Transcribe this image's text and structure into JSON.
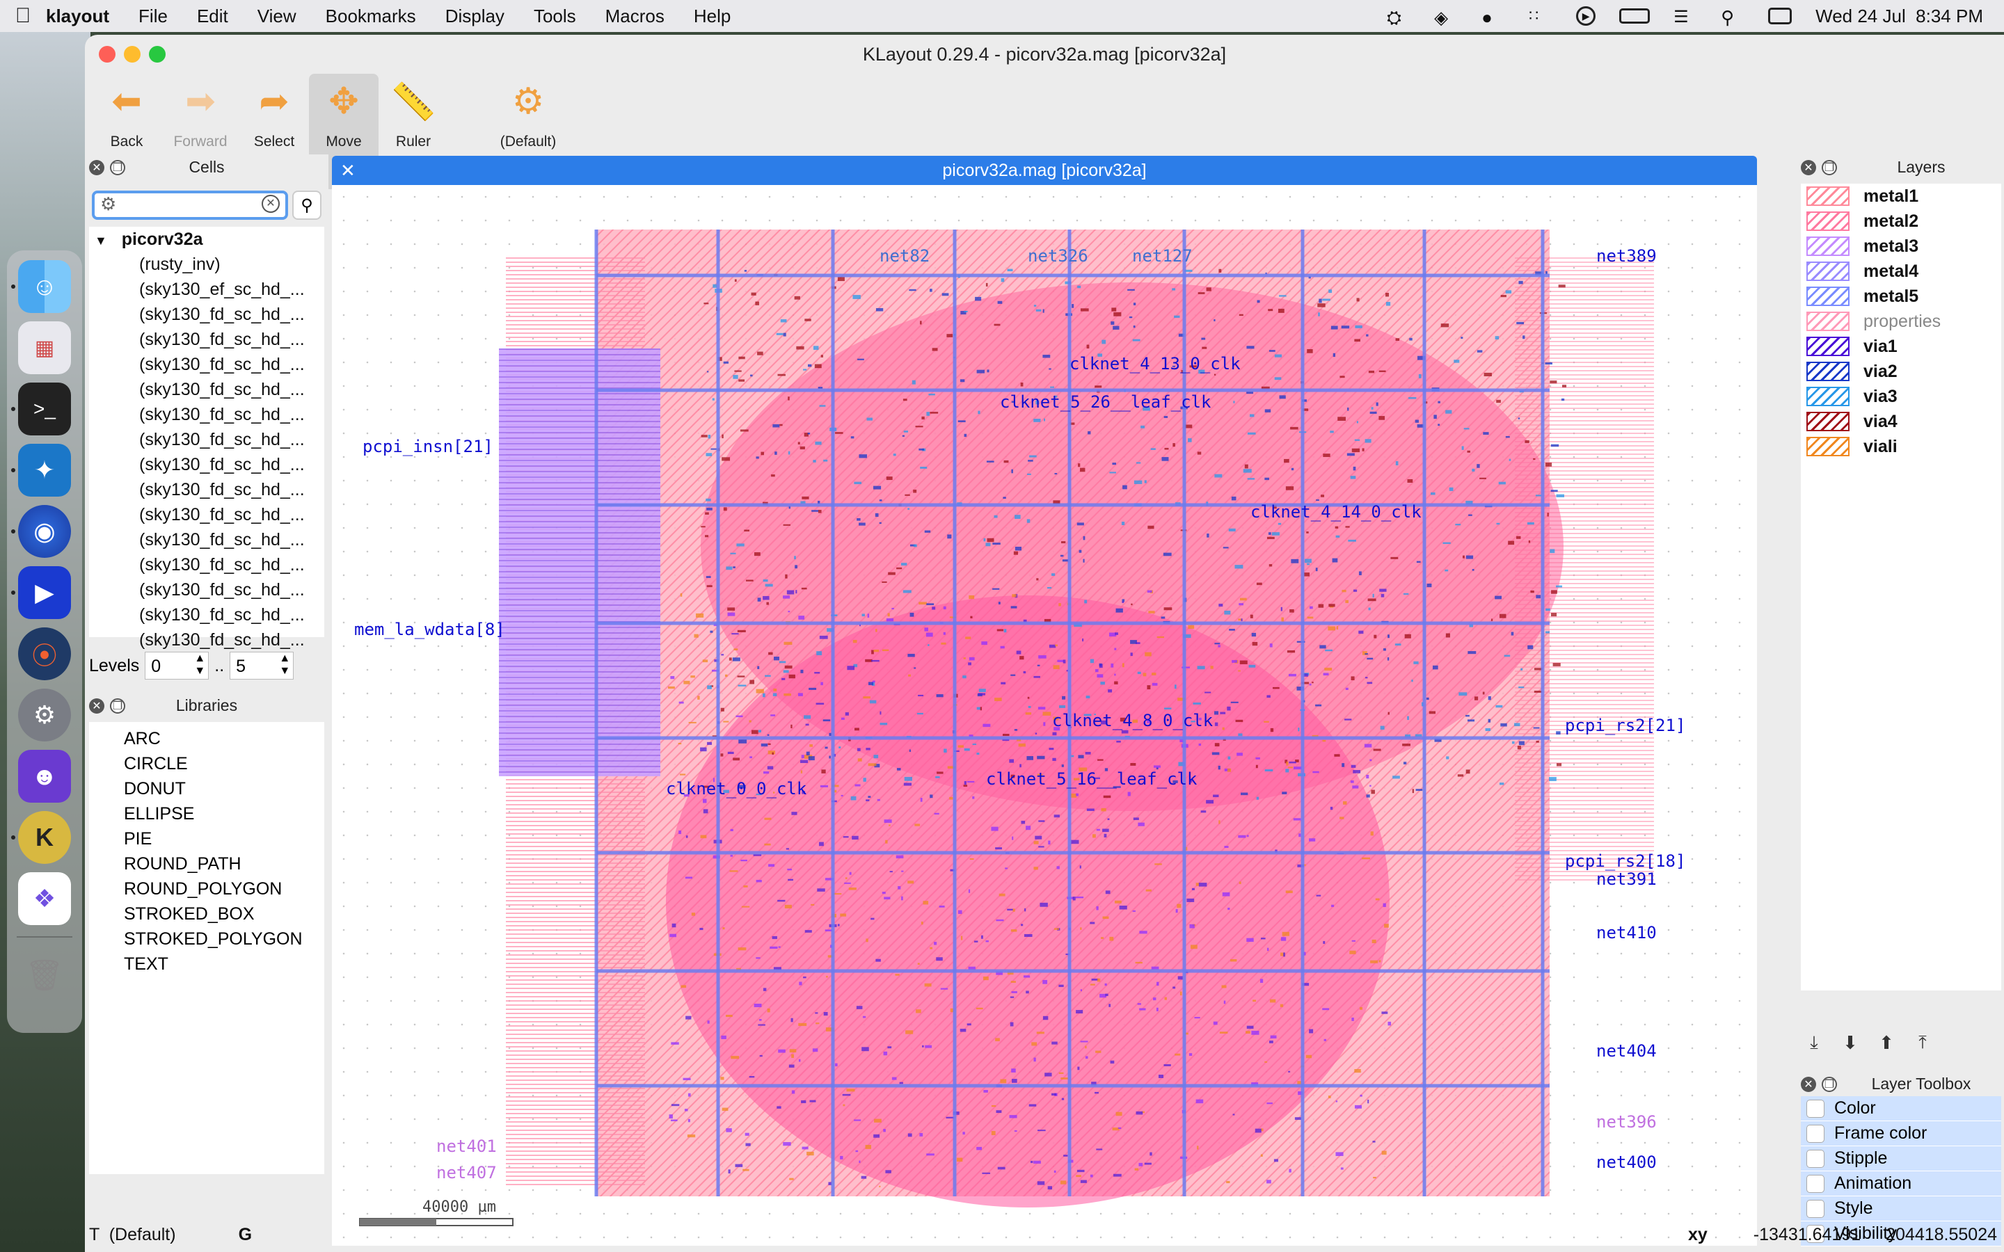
{
  "menubar": {
    "app_name": "klayout",
    "items": [
      "File",
      "Edit",
      "View",
      "Bookmarks",
      "Display",
      "Tools",
      "Macros",
      "Help"
    ],
    "clock": "Wed 24 Jul  8:34 PM"
  },
  "window": {
    "title": "KLayout 0.29.4 - picorv32a.mag [picorv32a]"
  },
  "toolbar": {
    "back": "Back",
    "forward": "Forward",
    "select": "Select",
    "move": "Move",
    "ruler": "Ruler",
    "default": "(Default)"
  },
  "cells": {
    "header": "Cells",
    "search_value": "",
    "root": "picorv32a",
    "children": [
      "(rusty_inv)",
      "(sky130_ef_sc_hd_...",
      "(sky130_fd_sc_hd_...",
      "(sky130_fd_sc_hd_...",
      "(sky130_fd_sc_hd_...",
      "(sky130_fd_sc_hd_...",
      "(sky130_fd_sc_hd_...",
      "(sky130_fd_sc_hd_...",
      "(sky130_fd_sc_hd_...",
      "(sky130_fd_sc_hd_...",
      "(sky130_fd_sc_hd_...",
      "(sky130_fd_sc_hd_...",
      "(sky130_fd_sc_hd_...",
      "(sky130_fd_sc_hd_...",
      "(sky130_fd_sc_hd_...",
      "(sky130_fd_sc_hd_..."
    ],
    "levels_label": "Levels",
    "level_from": "0",
    "level_sep": "..",
    "level_to": "5"
  },
  "libraries": {
    "header": "Libraries",
    "items": [
      "ARC",
      "CIRCLE",
      "DONUT",
      "ELLIPSE",
      "PIE",
      "ROUND_PATH",
      "ROUND_POLYGON",
      "STROKED_BOX",
      "STROKED_POLYGON",
      "TEXT"
    ]
  },
  "layout_tab": {
    "title": "picorv32a.mag [picorv32a]"
  },
  "canvas": {
    "scale_label": "40000 µm",
    "labels": [
      {
        "text": "net389",
        "color": "#1010d0"
      },
      {
        "text": "pcpi_insn[21]",
        "color": "#1010d0"
      },
      {
        "text": "mem_la_wdata[8]",
        "color": "#1010d0"
      },
      {
        "text": "pcpi_rs2[21]",
        "color": "#1010d0"
      },
      {
        "text": "pcpi_rs2[18]",
        "color": "#1010d0"
      },
      {
        "text": "net391",
        "color": "#1010d0"
      },
      {
        "text": "net410",
        "color": "#1010d0"
      },
      {
        "text": "net404",
        "color": "#1010d0"
      },
      {
        "text": "net400",
        "color": "#1010d0"
      },
      {
        "text": "net396",
        "color": "#c070e0"
      },
      {
        "text": "net401",
        "color": "#c070e0"
      },
      {
        "text": "net407",
        "color": "#c070e0"
      },
      {
        "text": "net82",
        "color": "#4070d0"
      },
      {
        "text": "net326",
        "color": "#4070d0"
      },
      {
        "text": "net127",
        "color": "#4070d0"
      },
      {
        "text": "clknet_4_13_0_clk",
        "color": "#1010d0"
      },
      {
        "text": "clknet_5_26__leaf_clk",
        "color": "#1010d0"
      },
      {
        "text": "clknet_4_8_0_clk",
        "color": "#1010d0"
      },
      {
        "text": "clknet_4_14_0_clk",
        "color": "#1010d0"
      },
      {
        "text": "clknet_5_16__leaf_clk",
        "color": "#1010d0"
      },
      {
        "text": "clknet_0_0_clk",
        "color": "#1010d0"
      }
    ]
  },
  "layers": {
    "header": "Layers",
    "items": [
      {
        "name": "metal1",
        "color": "#ff8a9a"
      },
      {
        "name": "metal2",
        "color": "#ff7aa0"
      },
      {
        "name": "metal3",
        "color": "#c48cff"
      },
      {
        "name": "metal4",
        "color": "#9a8cff"
      },
      {
        "name": "metal5",
        "color": "#7a8cff"
      },
      {
        "name": "properties",
        "color": "#ff9ab8"
      },
      {
        "name": "via1",
        "color": "#4a10d8"
      },
      {
        "name": "via2",
        "color": "#1838c8"
      },
      {
        "name": "via3",
        "color": "#2898e8"
      },
      {
        "name": "via4",
        "color": "#a01018"
      },
      {
        "name": "viali",
        "color": "#f08820"
      }
    ]
  },
  "layer_toolbox": {
    "header": "Layer Toolbox",
    "items": [
      "Color",
      "Frame color",
      "Stipple",
      "Animation",
      "Style",
      "Visibility"
    ]
  },
  "status": {
    "mode": "T  (Default)",
    "grid": "G",
    "coord_label": "xy",
    "x": "-13431.64191",
    "y": "204418.55024"
  }
}
